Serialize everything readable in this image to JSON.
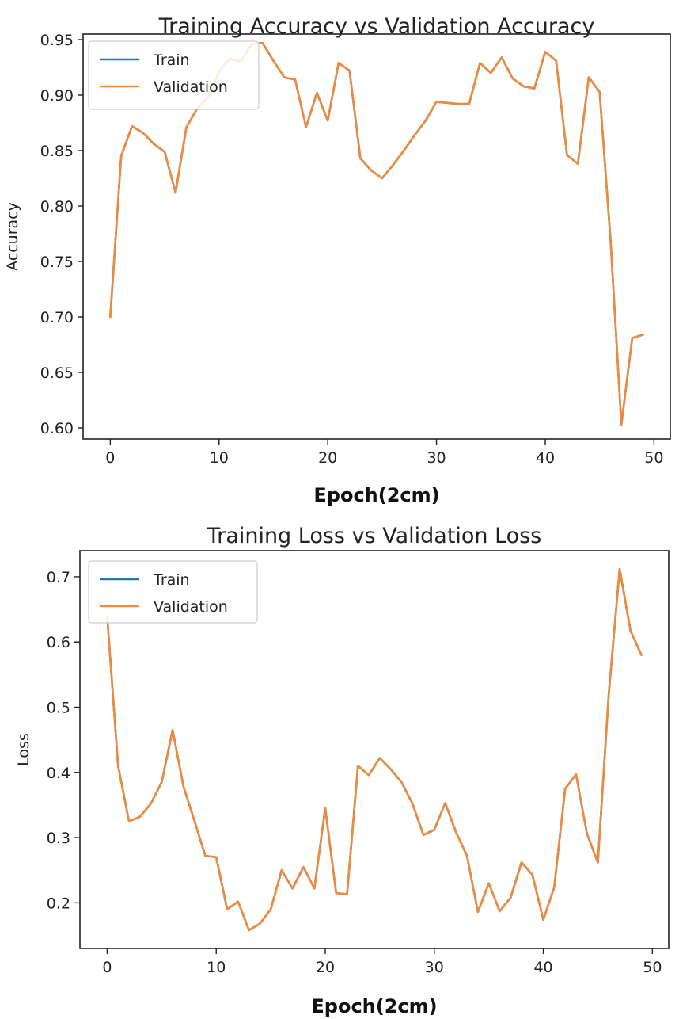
{
  "colors": {
    "train": "#1f77b4",
    "validation": "#ef8a3c",
    "axes": "#222222"
  },
  "chart_data": [
    {
      "type": "line",
      "title": "Training Accuracy vs Validation Accuracy",
      "xlabel": "Epoch(2cm)",
      "ylabel": "Accuracy",
      "xlim": [
        -2.5,
        51.5
      ],
      "ylim": [
        0.59,
        0.955
      ],
      "xticks": [
        0,
        10,
        20,
        30,
        40,
        50
      ],
      "yticks": [
        0.6,
        0.65,
        0.7,
        0.75,
        0.8,
        0.85,
        0.9,
        0.95
      ],
      "ytick_labels": [
        "0.60",
        "0.65",
        "0.70",
        "0.75",
        "0.80",
        "0.85",
        "0.90",
        "0.95"
      ],
      "grid": false,
      "legend": "top-left",
      "x": [
        0,
        1,
        2,
        3,
        4,
        5,
        6,
        7,
        8,
        9,
        10,
        11,
        12,
        13,
        14,
        15,
        16,
        17,
        18,
        19,
        20,
        21,
        22,
        23,
        24,
        25,
        26,
        27,
        28,
        29,
        30,
        31,
        32,
        33,
        34,
        35,
        36,
        37,
        38,
        39,
        40,
        41,
        42,
        43,
        44,
        45,
        46,
        47,
        48,
        49
      ],
      "series": [
        {
          "name": "Train",
          "values": [
            0.7,
            0.845,
            0.872,
            0.866,
            0.856,
            0.849,
            0.812,
            0.871,
            0.888,
            0.898,
            0.921,
            0.933,
            0.93,
            0.946,
            0.947,
            0.931,
            0.916,
            0.914,
            0.871,
            0.902,
            0.877,
            0.929,
            0.922,
            0.843,
            0.832,
            0.825,
            0.837,
            0.85,
            0.864,
            0.877,
            0.894,
            0.893,
            0.892,
            0.892,
            0.929,
            0.92,
            0.934,
            0.915,
            0.908,
            0.906,
            0.939,
            0.931,
            0.846,
            0.838,
            0.916,
            0.903,
            0.77,
            0.603,
            0.681,
            0.684
          ]
        },
        {
          "name": "Validation",
          "values": [
            0.7,
            0.845,
            0.872,
            0.866,
            0.856,
            0.849,
            0.812,
            0.871,
            0.888,
            0.898,
            0.921,
            0.933,
            0.93,
            0.946,
            0.947,
            0.931,
            0.916,
            0.914,
            0.871,
            0.902,
            0.877,
            0.929,
            0.922,
            0.843,
            0.832,
            0.825,
            0.837,
            0.85,
            0.864,
            0.877,
            0.894,
            0.893,
            0.892,
            0.892,
            0.929,
            0.92,
            0.934,
            0.915,
            0.908,
            0.906,
            0.939,
            0.931,
            0.846,
            0.838,
            0.916,
            0.903,
            0.77,
            0.603,
            0.681,
            0.684
          ]
        }
      ]
    },
    {
      "type": "line",
      "title": "Training Loss vs Validation Loss",
      "xlabel": "Epoch(2cm)",
      "ylabel": "Loss",
      "xlim": [
        -2.5,
        51.5
      ],
      "ylim": [
        0.13,
        0.74
      ],
      "xticks": [
        0,
        10,
        20,
        30,
        40,
        50
      ],
      "yticks": [
        0.2,
        0.3,
        0.4,
        0.5,
        0.6,
        0.7
      ],
      "ytick_labels": [
        "0.2",
        "0.3",
        "0.4",
        "0.5",
        "0.6",
        "0.7"
      ],
      "grid": false,
      "legend": "top-left",
      "x": [
        0,
        1,
        2,
        3,
        4,
        5,
        6,
        7,
        8,
        9,
        10,
        11,
        12,
        13,
        14,
        15,
        16,
        17,
        18,
        19,
        20,
        21,
        22,
        23,
        24,
        25,
        26,
        27,
        28,
        29,
        30,
        31,
        32,
        33,
        34,
        35,
        36,
        37,
        38,
        39,
        40,
        41,
        42,
        43,
        44,
        45,
        46,
        47,
        48,
        49
      ],
      "series": [
        {
          "name": "Train",
          "values": [
            0.64,
            0.41,
            0.325,
            0.332,
            0.352,
            0.385,
            0.465,
            0.378,
            0.326,
            0.272,
            0.27,
            0.19,
            0.202,
            0.158,
            0.168,
            0.19,
            0.25,
            0.222,
            0.255,
            0.222,
            0.345,
            0.215,
            0.213,
            0.41,
            0.396,
            0.422,
            0.405,
            0.385,
            0.352,
            0.304,
            0.312,
            0.353,
            0.308,
            0.272,
            0.186,
            0.23,
            0.187,
            0.208,
            0.262,
            0.243,
            0.174,
            0.224,
            0.375,
            0.397,
            0.306,
            0.262,
            0.52,
            0.712,
            0.617,
            0.58
          ]
        },
        {
          "name": "Validation",
          "values": [
            0.64,
            0.41,
            0.325,
            0.332,
            0.352,
            0.385,
            0.465,
            0.378,
            0.326,
            0.272,
            0.27,
            0.19,
            0.202,
            0.158,
            0.168,
            0.19,
            0.25,
            0.222,
            0.255,
            0.222,
            0.345,
            0.215,
            0.213,
            0.41,
            0.396,
            0.422,
            0.405,
            0.385,
            0.352,
            0.304,
            0.312,
            0.353,
            0.308,
            0.272,
            0.186,
            0.23,
            0.187,
            0.208,
            0.262,
            0.243,
            0.174,
            0.224,
            0.375,
            0.397,
            0.306,
            0.262,
            0.52,
            0.712,
            0.617,
            0.58
          ]
        }
      ]
    }
  ]
}
